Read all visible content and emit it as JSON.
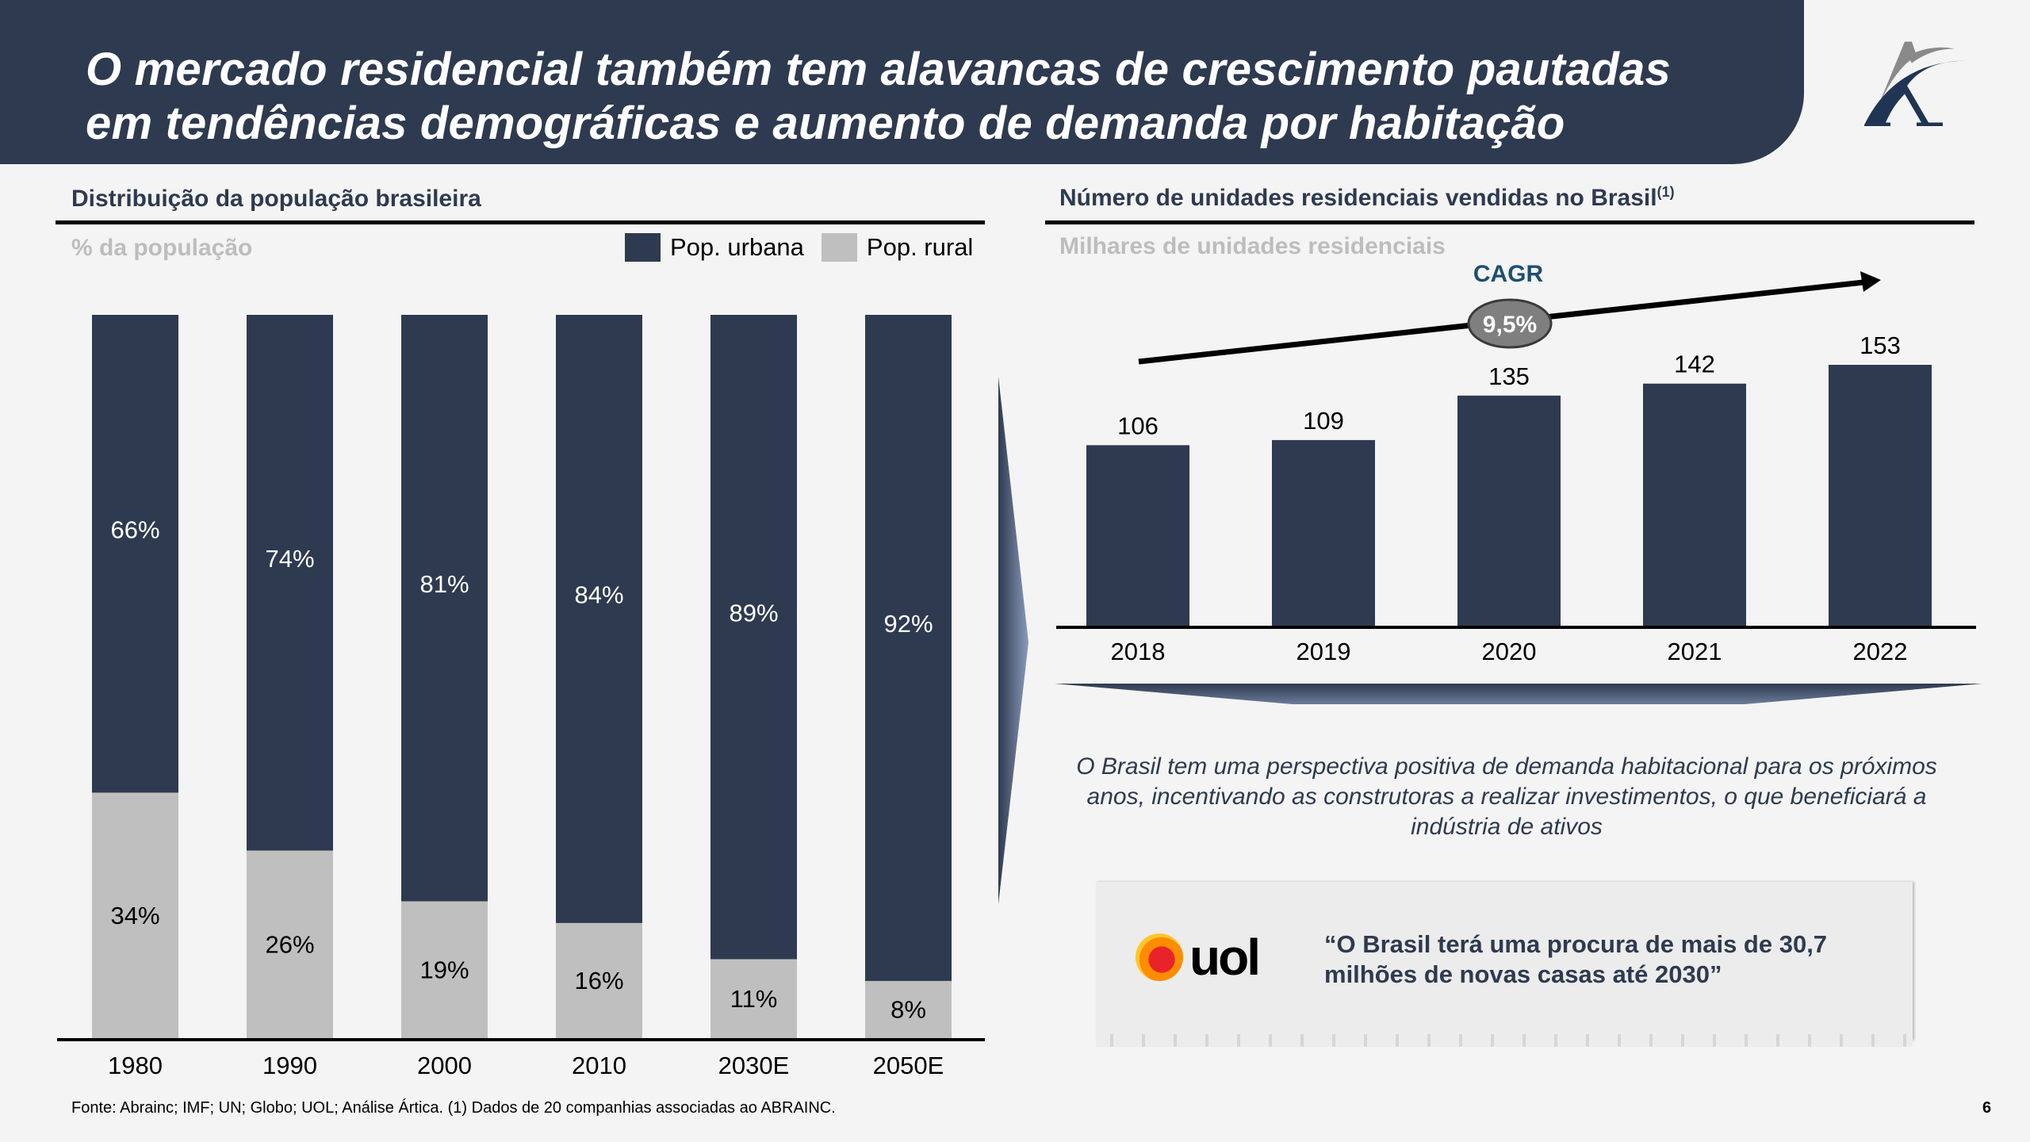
{
  "header": {
    "title_line1": "O mercado residencial também tem alavancas de crescimento pautadas",
    "title_line2": "em tendências demográficas e aumento de demanda por habitação",
    "logo": "artica-logo-icon"
  },
  "left_panel": {
    "title": "Distribuição da população brasileira",
    "subtitle": "% da população",
    "legend": [
      {
        "label": "Pop. urbana",
        "color": "#2e3a4f"
      },
      {
        "label": "Pop. rural",
        "color": "#bfbfbf"
      }
    ]
  },
  "right_panel": {
    "title": "Número de unidades residenciais vendidas no Brasil",
    "title_sup": "(1)",
    "subtitle": "Milhares de unidades residenciais",
    "cagr_label": "CAGR",
    "cagr_value": "9,5%",
    "body_text": "O Brasil tem uma perspectiva positiva de demanda habitacional para os próximos anos, incentivando as construtoras a realizar investimentos, o que beneficiará a indústria de ativos",
    "quote_source": "uol",
    "quote": "“O Brasil terá uma procura de mais de 30,7 milhões de novas casas até 2030”"
  },
  "footer": {
    "source": "Fonte: Abrainc; IMF; UN; Globo; UOL; Análise Ártica. (1) Dados de 20 companhias associadas ao ABRAINC.",
    "page_number": "6"
  },
  "colors": {
    "navy": "#2e3a4f",
    "gray": "#bfbfbf",
    "cagr_text": "#1f4e6e"
  },
  "chart_data": [
    {
      "type": "bar",
      "stacked": true,
      "title": "Distribuição da população brasileira",
      "ylabel": "% da população",
      "categories": [
        "1980",
        "1990",
        "2000",
        "2010",
        "2030E",
        "2050E"
      ],
      "series": [
        {
          "name": "Pop. rural",
          "values": [
            34,
            26,
            19,
            16,
            11,
            8
          ],
          "labels": [
            "34%",
            "26%",
            "19%",
            "16%",
            "11%",
            "8%"
          ]
        },
        {
          "name": "Pop. urbana",
          "values": [
            66,
            74,
            81,
            84,
            89,
            92
          ],
          "labels": [
            "66%",
            "74%",
            "81%",
            "84%",
            "89%",
            "92%"
          ]
        }
      ],
      "ylim": [
        0,
        100
      ],
      "grid": false,
      "legend": "top-right"
    },
    {
      "type": "bar",
      "title": "Número de unidades residenciais vendidas no Brasil",
      "ylabel": "Milhares de unidades residenciais",
      "categories": [
        "2018",
        "2019",
        "2020",
        "2021",
        "2022"
      ],
      "values": [
        106,
        109,
        135,
        142,
        153
      ],
      "annotation": {
        "label": "CAGR",
        "value": "9,5%"
      },
      "grid": false
    }
  ]
}
